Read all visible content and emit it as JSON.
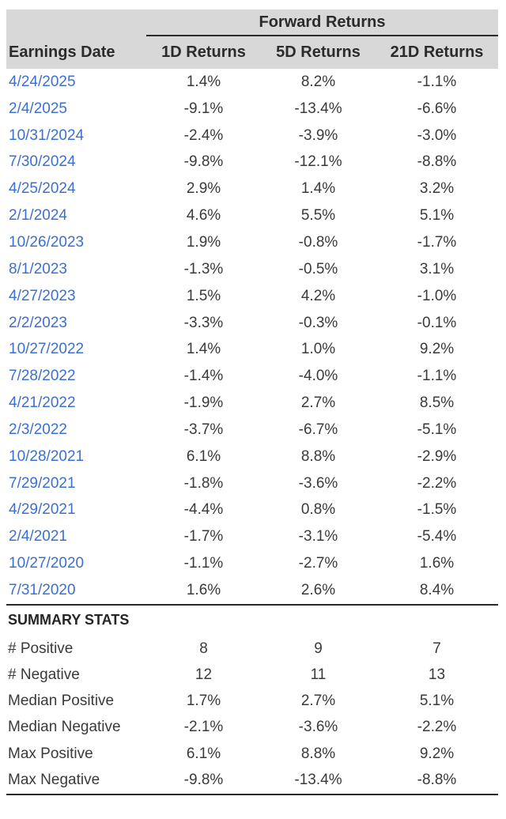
{
  "table": {
    "group_header": "Forward Returns",
    "columns": [
      "Earnings Date",
      "1D Returns",
      "5D Returns",
      "21D Returns"
    ],
    "rows": [
      [
        "4/24/2025",
        "1.4%",
        "8.2%",
        "-1.1%"
      ],
      [
        "2/4/2025",
        "-9.1%",
        "-13.4%",
        "-6.6%"
      ],
      [
        "10/31/2024",
        "-2.4%",
        "-3.9%",
        "-3.0%"
      ],
      [
        "7/30/2024",
        "-9.8%",
        "-12.1%",
        "-8.8%"
      ],
      [
        "4/25/2024",
        "2.9%",
        "1.4%",
        "3.2%"
      ],
      [
        "2/1/2024",
        "4.6%",
        "5.5%",
        "5.1%"
      ],
      [
        "10/26/2023",
        "1.9%",
        "-0.8%",
        "-1.7%"
      ],
      [
        "8/1/2023",
        "-1.3%",
        "-0.5%",
        "3.1%"
      ],
      [
        "4/27/2023",
        "1.5%",
        "4.2%",
        "-1.0%"
      ],
      [
        "2/2/2023",
        "-3.3%",
        "-0.3%",
        "-0.1%"
      ],
      [
        "10/27/2022",
        "1.4%",
        "1.0%",
        "9.2%"
      ],
      [
        "7/28/2022",
        "-1.4%",
        "-4.0%",
        "-1.1%"
      ],
      [
        "4/21/2022",
        "-1.9%",
        "2.7%",
        "8.5%"
      ],
      [
        "2/3/2022",
        "-3.7%",
        "-6.7%",
        "-5.1%"
      ],
      [
        "10/28/2021",
        "6.1%",
        "8.8%",
        "-2.9%"
      ],
      [
        "7/29/2021",
        "-1.8%",
        "-3.6%",
        "-2.2%"
      ],
      [
        "4/29/2021",
        "-4.4%",
        "0.8%",
        "-1.5%"
      ],
      [
        "2/4/2021",
        "-1.7%",
        "-3.1%",
        "-5.4%"
      ],
      [
        "10/27/2020",
        "-1.1%",
        "-2.7%",
        "1.6%"
      ],
      [
        "7/31/2020",
        "1.6%",
        "2.6%",
        "8.4%"
      ]
    ]
  },
  "summary": {
    "title": "SUMMARY STATS",
    "rows": [
      [
        "# Positive",
        "8",
        "9",
        "7"
      ],
      [
        "# Negative",
        "12",
        "11",
        "13"
      ],
      [
        "Median Positive",
        "1.7%",
        "2.7%",
        "5.1%"
      ],
      [
        "Median Negative",
        "-2.1%",
        "-3.6%",
        "-2.2%"
      ],
      [
        "Max Positive",
        "6.1%",
        "8.8%",
        "9.2%"
      ],
      [
        "Max Negative",
        "-9.8%",
        "-13.4%",
        "-8.8%"
      ]
    ]
  },
  "colors": {
    "header_bg": "#d8d8d8",
    "date_link_blue": "#3c6fd3",
    "rule_dark": "#2b2b2b",
    "body_text": "#3a3a3a"
  }
}
